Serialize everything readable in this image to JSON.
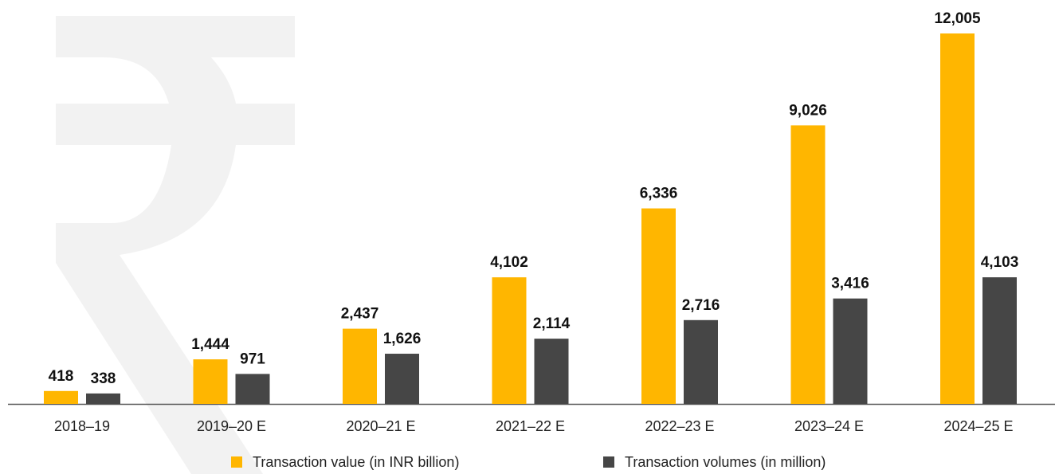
{
  "chart_data": {
    "type": "bar",
    "categories": [
      "2018–19",
      "2019–20 E",
      "2020–21 E",
      "2021–22 E",
      "2022–23 E",
      "2023–24 E",
      "2024–25 E"
    ],
    "series": [
      {
        "name": "Transaction value (in INR billion)",
        "color": "#ffb600",
        "values": [
          418,
          1444,
          2437,
          4102,
          6336,
          9026,
          12005
        ],
        "value_labels": [
          "418",
          "1,444",
          "2,437",
          "4,102",
          "6,336",
          "9,026",
          "12,005"
        ]
      },
      {
        "name": "Transaction volumes (in million)",
        "color": "#464646",
        "values": [
          338,
          971,
          1626,
          2114,
          2716,
          3416,
          4103
        ],
        "value_labels": [
          "338",
          "971",
          "1,626",
          "2,114",
          "2,716",
          "3,416",
          "4,103"
        ]
      }
    ]
  }
}
